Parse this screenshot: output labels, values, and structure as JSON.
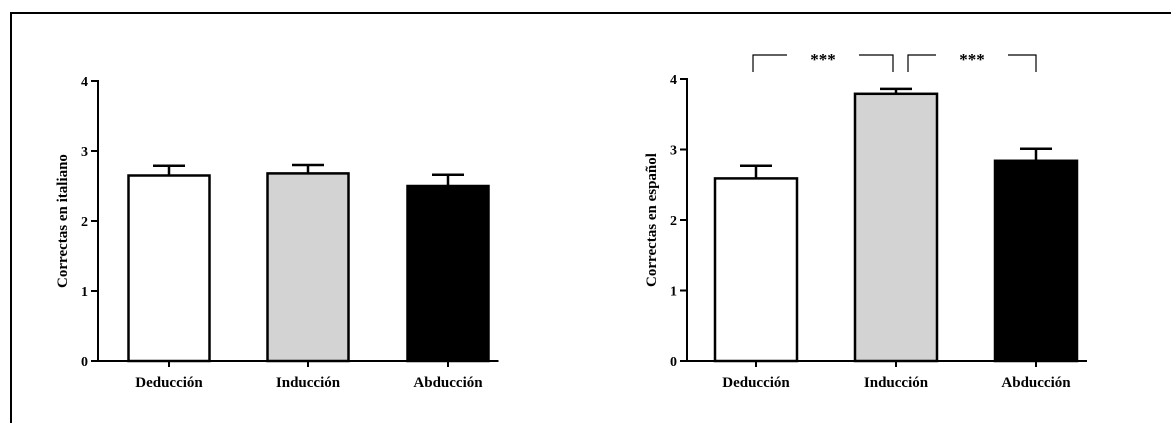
{
  "chart_data": [
    {
      "type": "bar",
      "categories": [
        "Deducción",
        "Inducción",
        "Abducción"
      ],
      "values": [
        2.65,
        2.68,
        2.5
      ],
      "errors": [
        0.14,
        0.12,
        0.16
      ],
      "bar_colors": [
        "#ffffff",
        "#d3d3d3",
        "#000000"
      ],
      "ylabel": "Correctas en italiano",
      "xlabel": "",
      "ylim": [
        0,
        4
      ],
      "yticks": [
        "0",
        "1",
        "2",
        "3",
        "4"
      ],
      "grid": false,
      "significance": []
    },
    {
      "type": "bar",
      "categories": [
        "Deducción",
        "Inducción",
        "Abducción"
      ],
      "values": [
        2.59,
        3.79,
        2.84
      ],
      "errors": [
        0.18,
        0.07,
        0.17
      ],
      "bar_colors": [
        "#ffffff",
        "#d3d3d3",
        "#000000"
      ],
      "ylabel": "Correctas en español",
      "xlabel": "",
      "ylim": [
        0,
        4
      ],
      "yticks": [
        "0",
        "1",
        "2",
        "3",
        "4"
      ],
      "grid": false,
      "significance": [
        {
          "from": 0,
          "to": 1,
          "label": "***"
        },
        {
          "from": 1,
          "to": 2,
          "label": "***"
        }
      ]
    }
  ]
}
